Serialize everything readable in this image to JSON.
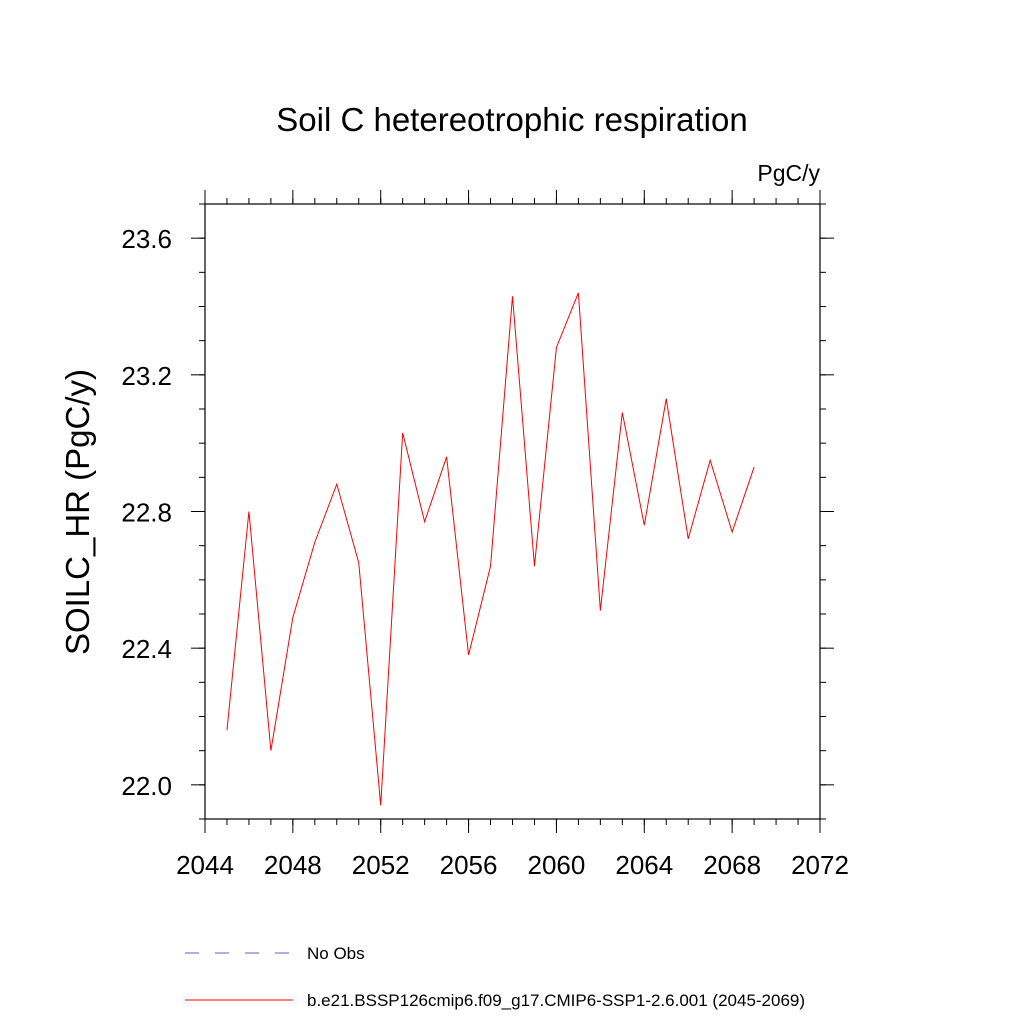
{
  "chart_data": {
    "type": "line",
    "title": "Soil C hetereotrophic respiration",
    "units_label": "PgC/y",
    "xlabel": "",
    "ylabel": "SOILC_HR  (PgC/y)",
    "xlim": [
      2044,
      2072
    ],
    "ylim": [
      21.9,
      23.7
    ],
    "x_ticks": [
      2044,
      2048,
      2052,
      2056,
      2060,
      2064,
      2068,
      2072
    ],
    "x_tick_labels": [
      "2044",
      "2048",
      "2052",
      "2056",
      "2060",
      "2064",
      "2068",
      "2072"
    ],
    "x_minor_step": 1,
    "y_ticks": [
      22.0,
      22.4,
      22.8,
      23.2,
      23.6
    ],
    "y_tick_labels": [
      "22.0",
      "22.4",
      "22.8",
      "23.2",
      "23.6"
    ],
    "y_minor_step": 0.1,
    "grid": false,
    "series": [
      {
        "name": "b.e21.BSSP126cmip6.f09_g17.CMIP6-SSP1-2.6.001 (2045-2069)",
        "color": "#ff0000",
        "x": [
          2045,
          2046,
          2047,
          2048,
          2049,
          2050,
          2051,
          2052,
          2053,
          2054,
          2055,
          2056,
          2057,
          2058,
          2059,
          2060,
          2061,
          2062,
          2063,
          2064,
          2065,
          2066,
          2067,
          2068,
          2069
        ],
        "values": [
          22.16,
          22.8,
          22.1,
          22.49,
          22.71,
          22.88,
          22.65,
          21.94,
          23.03,
          22.77,
          22.96,
          22.38,
          22.64,
          23.43,
          22.64,
          23.28,
          23.44,
          22.51,
          23.09,
          22.76,
          23.13,
          22.72,
          22.95,
          22.74,
          22.93
        ]
      }
    ],
    "legend": [
      {
        "label": "No Obs",
        "color": "#6a5acd",
        "style": "dashed"
      },
      {
        "label": "b.e21.BSSP126cmip6.f09_g17.CMIP6-SSP1-2.6.001 (2045-2069)",
        "color": "#ff0000",
        "style": "solid"
      }
    ],
    "legend_position": "bottom-left"
  }
}
